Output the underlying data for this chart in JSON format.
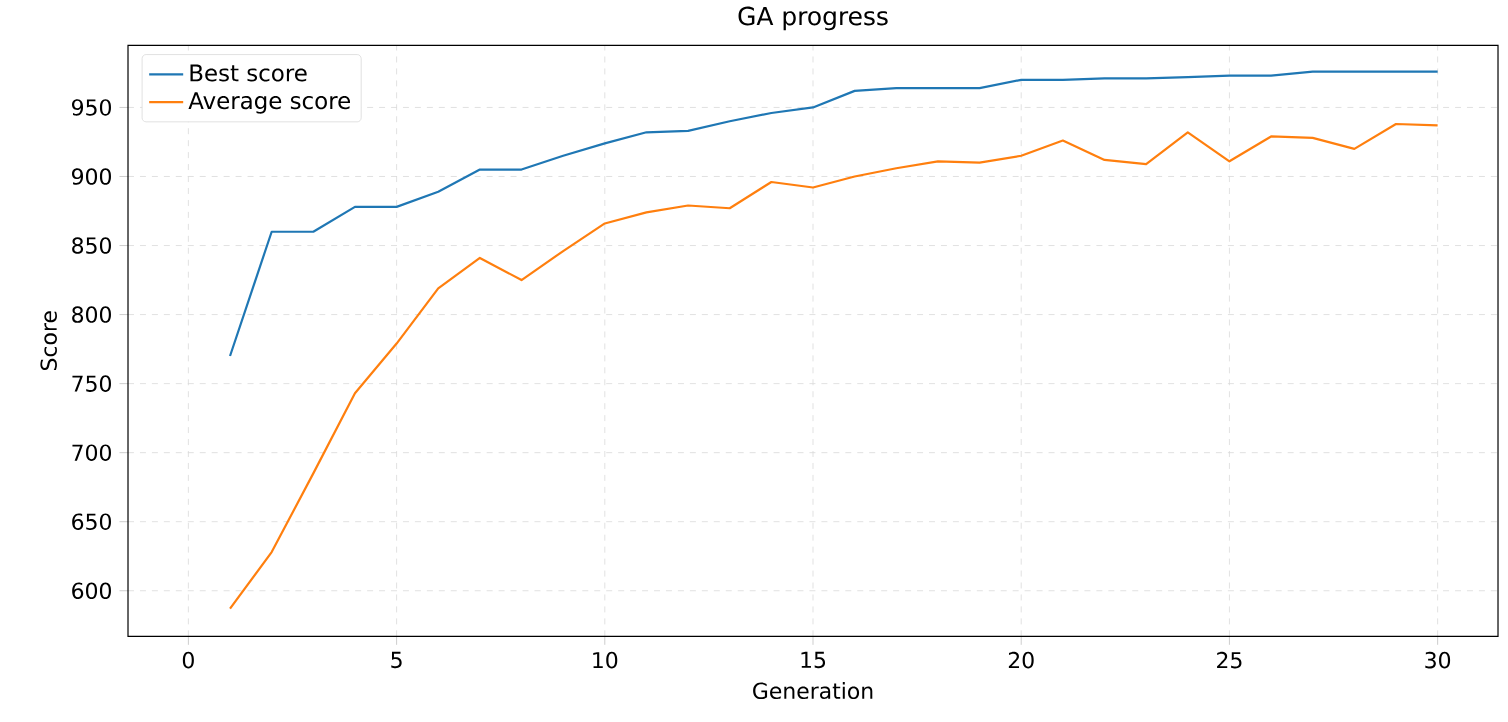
{
  "chart_data": {
    "type": "line",
    "title": "GA progress",
    "xlabel": "Generation",
    "ylabel": "Score",
    "x": [
      1,
      2,
      3,
      4,
      5,
      6,
      7,
      8,
      9,
      10,
      11,
      12,
      13,
      14,
      15,
      16,
      17,
      18,
      19,
      20,
      21,
      22,
      23,
      24,
      25,
      26,
      27,
      28,
      29,
      30
    ],
    "series": [
      {
        "name": "Best score",
        "color": "#1f77b4",
        "values": [
          770,
          860,
          860,
          878,
          878,
          889,
          905,
          905,
          915,
          924,
          932,
          933,
          940,
          946,
          950,
          962,
          964,
          964,
          964,
          970,
          970,
          971,
          971,
          972,
          973,
          973,
          976,
          976,
          976,
          976
        ]
      },
      {
        "name": "Average score",
        "color": "#ff7f0e",
        "values": [
          587,
          628,
          685,
          743,
          779,
          819,
          841,
          825,
          846,
          866,
          874,
          879,
          877,
          896,
          892,
          900,
          906,
          911,
          910,
          915,
          926,
          912,
          909,
          932,
          911,
          929,
          928,
          920,
          938,
          937
        ]
      }
    ],
    "xlim": [
      -1.45,
      31.45
    ],
    "ylim": [
      567,
      995
    ],
    "xticks": [
      0,
      5,
      10,
      15,
      20,
      25,
      30
    ],
    "yticks": [
      600,
      650,
      700,
      750,
      800,
      850,
      900,
      950
    ],
    "grid": true,
    "legend": "top left",
    "marker": "none",
    "line_style": "solid"
  }
}
